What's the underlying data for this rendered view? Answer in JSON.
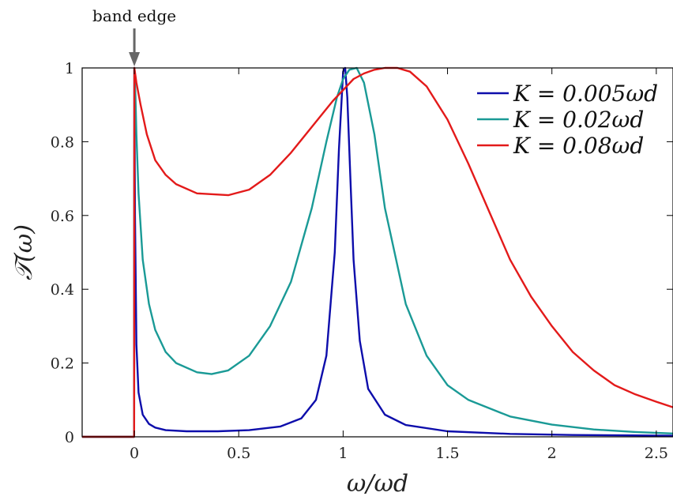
{
  "chart_data": {
    "type": "line",
    "xlabel": "ω/ωd",
    "ylabel": "𝒯(ω)",
    "xlim": [
      -0.25,
      2.58
    ],
    "ylim": [
      0,
      1
    ],
    "xticks": [
      "0",
      "0.5",
      "1",
      "1.5",
      "2",
      "2.5"
    ],
    "xtick_values": [
      0,
      0.5,
      1,
      1.5,
      2,
      2.5
    ],
    "yticks": [
      "0",
      "0.2",
      "0.4",
      "0.6",
      "0.8",
      "1"
    ],
    "ytick_values": [
      0,
      0.2,
      0.4,
      0.6,
      0.8,
      1
    ],
    "grid": false,
    "legend_position": "top-right",
    "annotation": {
      "text": "band edge",
      "x": 0,
      "y": 1
    },
    "series": [
      {
        "name": "K = 0.005ωd",
        "color": "#0d0dab",
        "x": [
          -0.25,
          -0.001,
          0,
          0.003,
          0.01,
          0.02,
          0.04,
          0.07,
          0.1,
          0.15,
          0.25,
          0.4,
          0.55,
          0.7,
          0.8,
          0.87,
          0.92,
          0.96,
          0.98,
          1.0,
          1.01,
          1.02,
          1.035,
          1.05,
          1.08,
          1.12,
          1.2,
          1.3,
          1.5,
          1.8,
          2.1,
          2.58
        ],
        "y": [
          0,
          0,
          1.0,
          0.6,
          0.25,
          0.12,
          0.06,
          0.035,
          0.025,
          0.018,
          0.015,
          0.015,
          0.018,
          0.028,
          0.05,
          0.1,
          0.22,
          0.5,
          0.78,
          0.99,
          1.0,
          0.92,
          0.7,
          0.48,
          0.26,
          0.13,
          0.06,
          0.032,
          0.015,
          0.008,
          0.005,
          0.003
        ]
      },
      {
        "name": "K = 0.02ωd",
        "color": "#1a9a96",
        "x": [
          -0.25,
          -0.001,
          0,
          0.005,
          0.01,
          0.02,
          0.04,
          0.07,
          0.1,
          0.15,
          0.2,
          0.3,
          0.37,
          0.45,
          0.55,
          0.65,
          0.75,
          0.85,
          0.92,
          0.97,
          1.0,
          1.03,
          1.065,
          1.1,
          1.15,
          1.2,
          1.3,
          1.4,
          1.5,
          1.6,
          1.8,
          2.0,
          2.2,
          2.4,
          2.58
        ],
        "y": [
          0,
          0,
          1.0,
          0.93,
          0.82,
          0.66,
          0.48,
          0.36,
          0.29,
          0.23,
          0.2,
          0.175,
          0.17,
          0.18,
          0.22,
          0.3,
          0.42,
          0.62,
          0.8,
          0.92,
          0.97,
          0.995,
          1.0,
          0.96,
          0.82,
          0.62,
          0.36,
          0.22,
          0.14,
          0.1,
          0.055,
          0.033,
          0.02,
          0.013,
          0.009
        ]
      },
      {
        "name": "K = 0.08ωd",
        "color": "#e31a1a",
        "x": [
          -0.25,
          -0.001,
          0,
          0.01,
          0.03,
          0.06,
          0.1,
          0.15,
          0.2,
          0.3,
          0.45,
          0.55,
          0.65,
          0.75,
          0.85,
          0.95,
          1.05,
          1.1,
          1.15,
          1.2,
          1.26,
          1.32,
          1.4,
          1.5,
          1.6,
          1.7,
          1.8,
          1.9,
          2.0,
          2.1,
          2.2,
          2.3,
          2.4,
          2.5,
          2.58
        ],
        "y": [
          0,
          0,
          1.0,
          0.96,
          0.9,
          0.82,
          0.75,
          0.71,
          0.685,
          0.66,
          0.655,
          0.67,
          0.71,
          0.77,
          0.84,
          0.91,
          0.97,
          0.985,
          0.995,
          1.0,
          1.0,
          0.99,
          0.95,
          0.86,
          0.74,
          0.61,
          0.48,
          0.38,
          0.3,
          0.23,
          0.18,
          0.14,
          0.115,
          0.095,
          0.08
        ]
      }
    ]
  }
}
